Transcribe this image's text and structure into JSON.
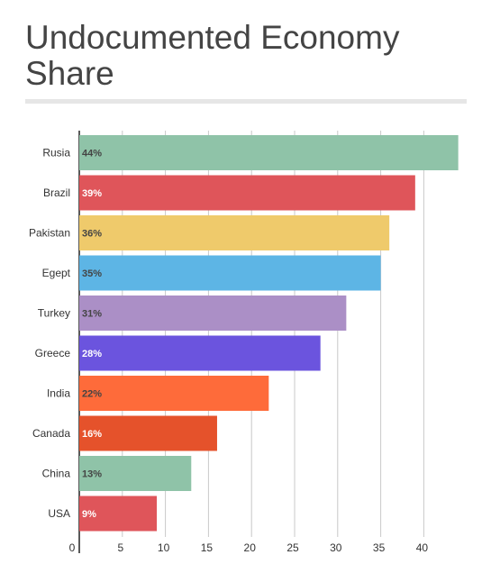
{
  "title": "Undocumented Economy Share",
  "chart_data": {
    "type": "bar",
    "orientation": "horizontal",
    "title": "Undocumented Economy Share",
    "xlabel": "",
    "ylabel": "",
    "xlim": [
      0,
      45
    ],
    "xticks": [
      0,
      5,
      10,
      15,
      20,
      25,
      30,
      35,
      40
    ],
    "grid": true,
    "categories": [
      "Rusia",
      "Brazil",
      "Pakistan",
      "Egept",
      "Turkey",
      "Greece",
      "India",
      "Canada",
      "China",
      "USA"
    ],
    "values": [
      44,
      39,
      36,
      35,
      31,
      28,
      22,
      16,
      13,
      9
    ],
    "data_labels": [
      "44%",
      "39%",
      "36%",
      "35%",
      "31%",
      "28%",
      "22%",
      "16%",
      "13%",
      "9%"
    ],
    "colors": [
      "#8fc3a8",
      "#df555a",
      "#efca6b",
      "#5db5e5",
      "#ab8fc6",
      "#6b54de",
      "#fe6b3a",
      "#e5522b",
      "#8fc3a8",
      "#df555a"
    ],
    "label_colors": [
      "#444444",
      "#ffffff",
      "#444444",
      "#444444",
      "#444444",
      "#ffffff",
      "#444444",
      "#ffffff",
      "#444444",
      "#ffffff"
    ]
  }
}
